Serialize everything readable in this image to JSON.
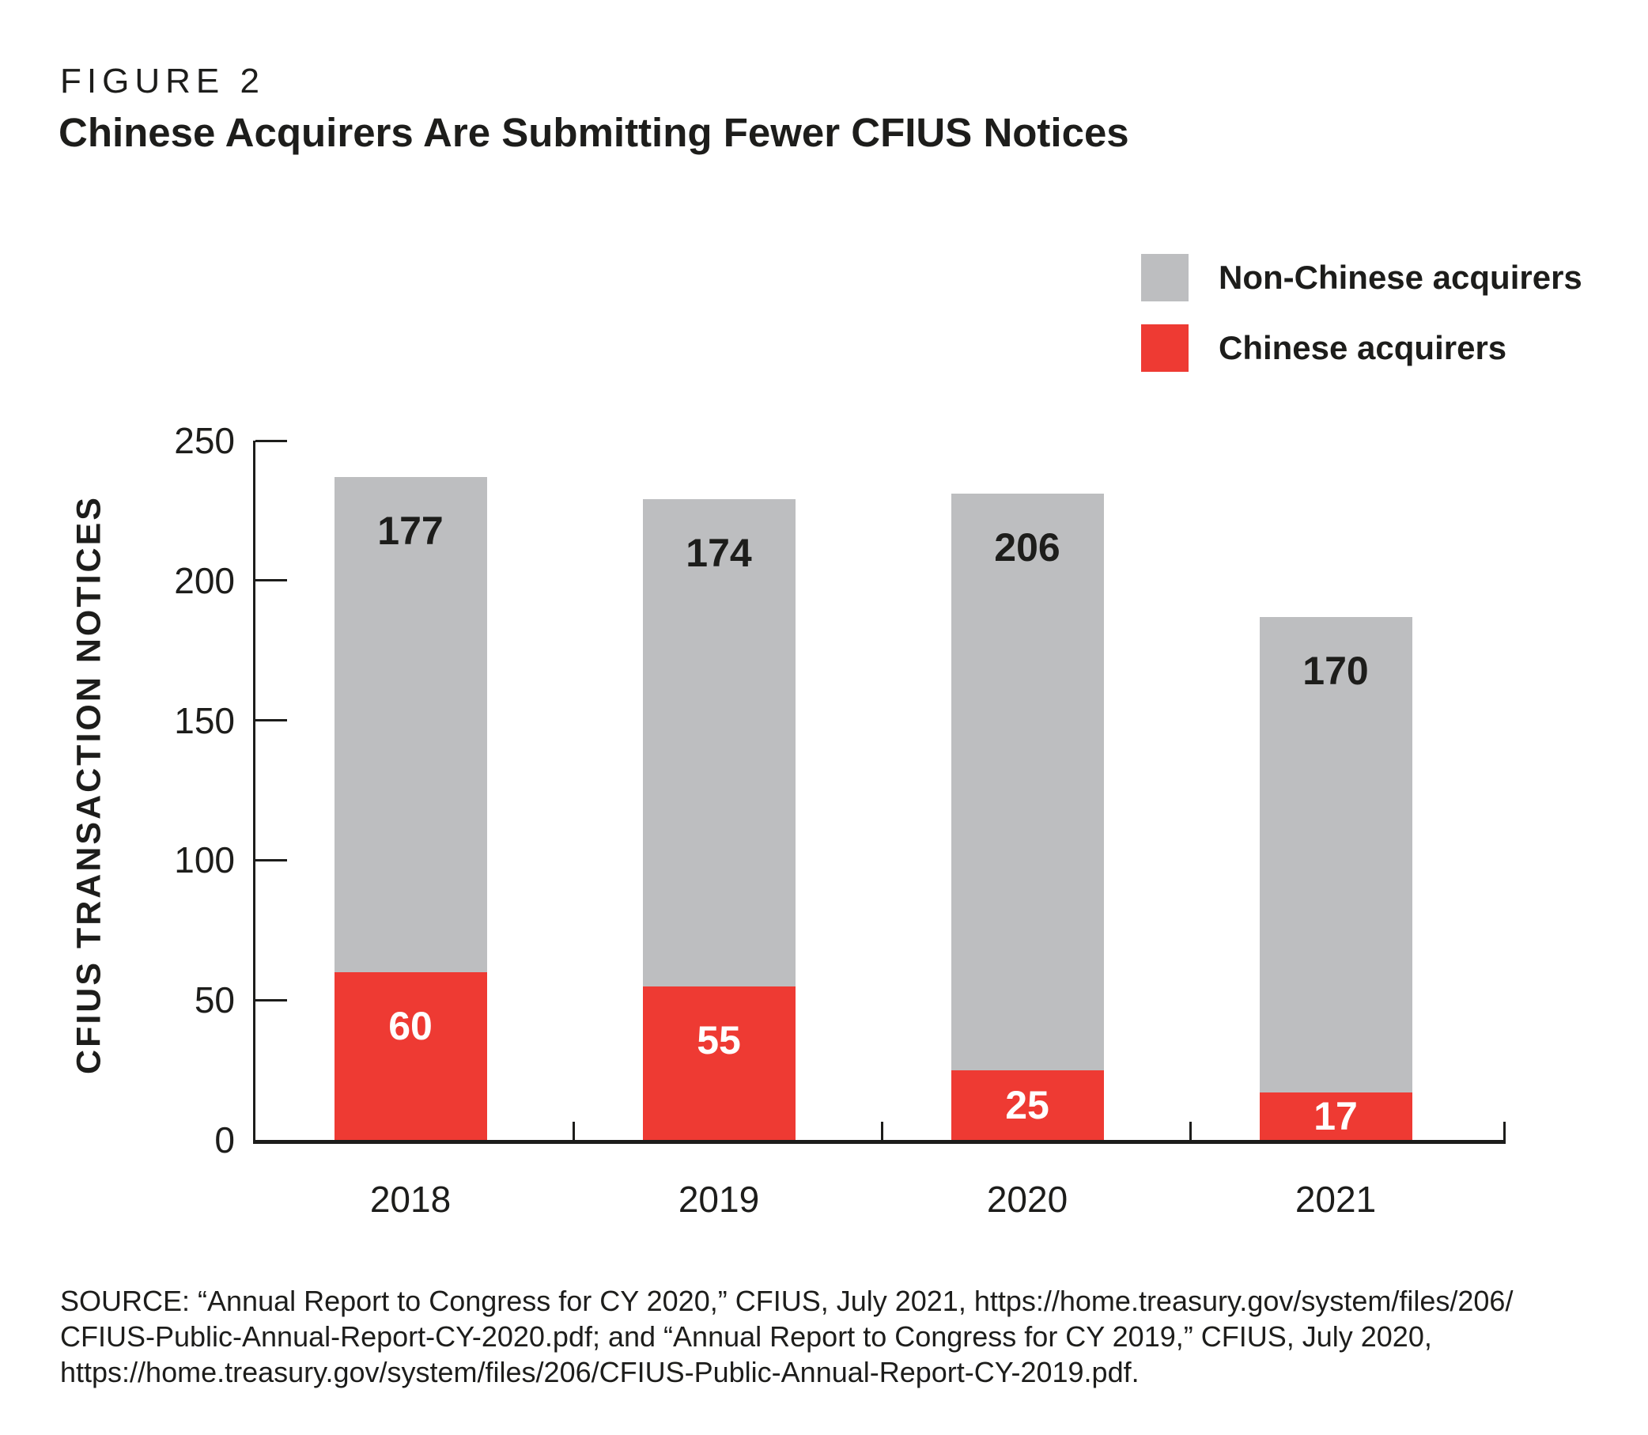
{
  "header": {
    "figure_label": "FIGURE 2",
    "title": "Chinese Acquirers Are Submitting Fewer CFIUS Notices"
  },
  "legend": [
    {
      "label": "Non-Chinese acquirers",
      "color": "#bdbec0"
    },
    {
      "label": "Chinese acquirers",
      "color": "#ee3a33"
    }
  ],
  "colors": {
    "chinese_red": "#ee3a33",
    "non_chinese_gray": "#bdbec0",
    "text_black": "#1d1d1b"
  },
  "chart_data": {
    "type": "bar",
    "stacked": true,
    "title": "Chinese Acquirers Are Submitting Fewer CFIUS Notices",
    "categories": [
      "2018",
      "2019",
      "2020",
      "2021"
    ],
    "series": [
      {
        "name": "Chinese acquirers",
        "color": "#ee3a33",
        "values": [
          60,
          55,
          25,
          17
        ]
      },
      {
        "name": "Non-Chinese acquirers",
        "color": "#bdbec0",
        "values": [
          177,
          174,
          206,
          170
        ]
      }
    ],
    "totals": [
      237,
      229,
      231,
      187
    ],
    "xlabel": "",
    "ylabel": "CFIUS TRANSACTION NOTICES",
    "ylim": [
      0,
      250
    ],
    "yticks": [
      0,
      50,
      100,
      150,
      200,
      250
    ],
    "grid": false,
    "legend_position": "top-right",
    "value_labels": true
  },
  "source": {
    "lines": [
      "SOURCE: “Annual Report to Congress for CY 2020,” CFIUS, July 2021, https://home.treasury.gov/system/files/206/",
      "CFIUS-Public-Annual-Report-CY-2020.pdf; and “Annual Report to Congress for CY 2019,” CFIUS, July 2020,",
      "https://home.treasury.gov/system/files/206/CFIUS-Public-Annual-Report-CY-2019.pdf."
    ]
  }
}
